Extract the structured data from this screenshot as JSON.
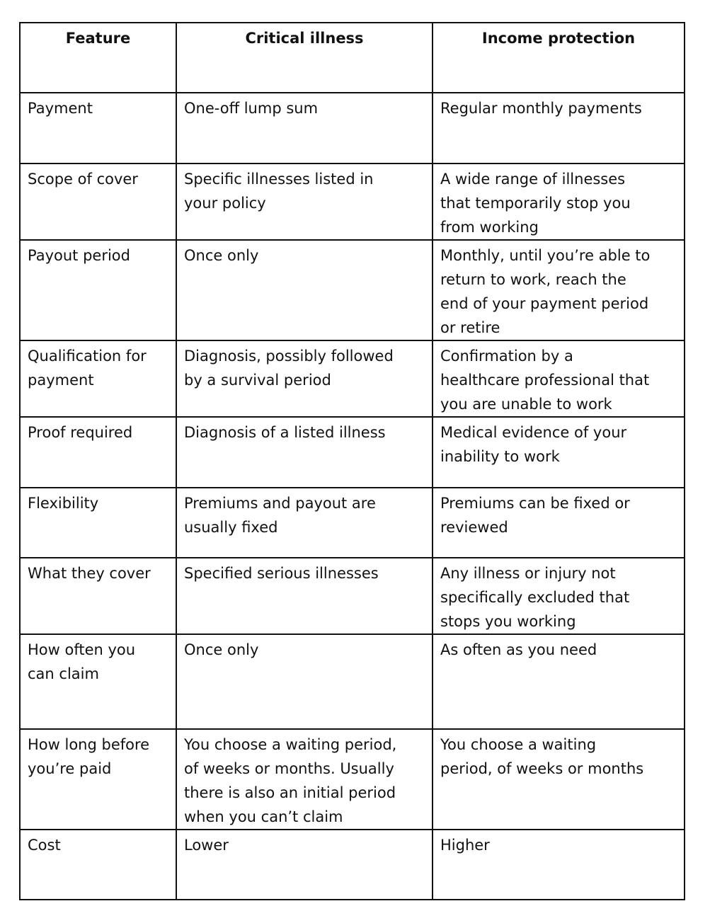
{
  "table": {
    "headers": [
      "Feature",
      "Critical illness",
      "Income protection"
    ],
    "rows": [
      [
        [
          "Payment"
        ],
        [
          "One-off lump sum"
        ],
        [
          "Regular monthly payments"
        ]
      ],
      [
        [
          "Scope of cover"
        ],
        [
          "Specific illnesses listed in",
          "your policy"
        ],
        [
          "A wide range of illnesses",
          "that temporarily stop you",
          "from working"
        ]
      ],
      [
        [
          "Payout period"
        ],
        [
          "Once only"
        ],
        [
          "Monthly, until you’re able to",
          "return to work, reach the",
          "end of your payment period",
          "or retire"
        ]
      ],
      [
        [
          "Qualification for",
          "payment"
        ],
        [
          "Diagnosis, possibly followed",
          "by a survival period"
        ],
        [
          "Confirmation by a",
          "healthcare professional that",
          "you are unable to work"
        ]
      ],
      [
        [
          "Proof required"
        ],
        [
          "Diagnosis of a listed illness"
        ],
        [
          "Medical evidence of your",
          "inability to work"
        ]
      ],
      [
        [
          "Flexibility"
        ],
        [
          "Premiums and payout are",
          "usually fixed"
        ],
        [
          "Premiums can be fixed or",
          "reviewed"
        ]
      ],
      [
        [
          "What they cover"
        ],
        [
          "Specified serious illnesses"
        ],
        [
          "Any illness or injury not",
          "specifically excluded that",
          "stops you working"
        ]
      ],
      [
        [
          "How often you",
          "can claim"
        ],
        [
          "Once only"
        ],
        [
          "As often as you need"
        ]
      ],
      [
        [
          "How long before",
          "you’re paid"
        ],
        [
          "You choose a waiting period,",
          "of weeks or months. Usually",
          "there is also an initial period",
          "when you can’t claim"
        ],
        [
          "You choose a waiting",
          "period, of weeks or months"
        ]
      ],
      [
        [
          "Cost"
        ],
        [
          "Lower"
        ],
        [
          "Higher"
        ]
      ]
    ]
  }
}
